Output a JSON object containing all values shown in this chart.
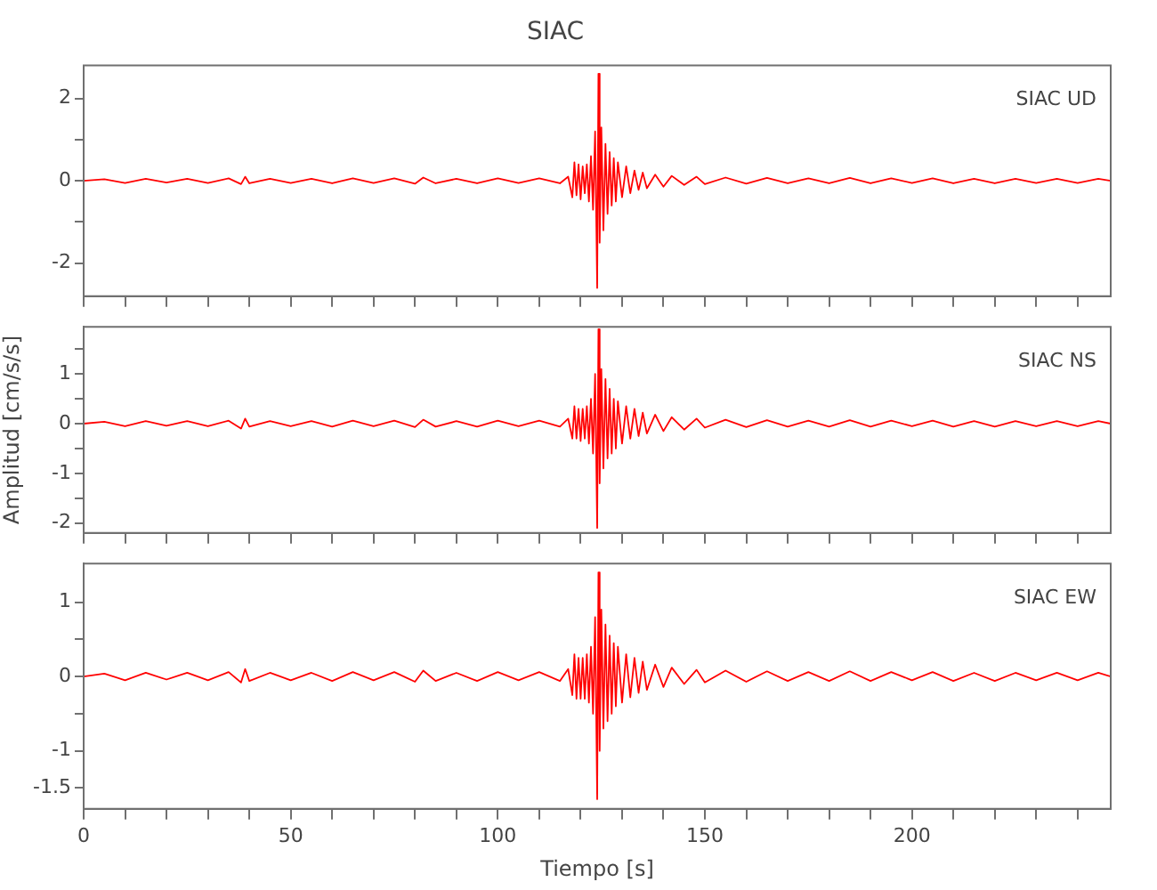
{
  "chart_data": [
    {
      "type": "line",
      "title": "SIAC",
      "annotations": [
        "SIAC UD"
      ],
      "tick_labels": "y",
      "marker": "none",
      "x": [
        0,
        5,
        10,
        15,
        20,
        25,
        30,
        35,
        38,
        39,
        40,
        45,
        50,
        55,
        60,
        65,
        70,
        75,
        80,
        82,
        85,
        90,
        95,
        100,
        105,
        110,
        115,
        117,
        118,
        118.5,
        119,
        119.5,
        120,
        120.5,
        121,
        121.5,
        122,
        122.5,
        123,
        123.5,
        124,
        124.3,
        124.6,
        125,
        125.5,
        126,
        126.5,
        127,
        127.5,
        128,
        128.5,
        129,
        130,
        131,
        132,
        133,
        134,
        135,
        136,
        138,
        140,
        142,
        145,
        148,
        150,
        155,
        160,
        165,
        170,
        175,
        180,
        185,
        190,
        195,
        200,
        205,
        210,
        215,
        220,
        225,
        230,
        235,
        240,
        245,
        248
      ],
      "values": [
        0,
        0.04,
        -0.05,
        0.05,
        -0.04,
        0.05,
        -0.05,
        0.06,
        -0.08,
        0.1,
        -0.06,
        0.05,
        -0.05,
        0.05,
        -0.06,
        0.06,
        -0.05,
        0.06,
        -0.07,
        0.08,
        -0.06,
        0.05,
        -0.06,
        0.06,
        -0.05,
        0.06,
        -0.06,
        0.1,
        -0.4,
        0.45,
        -0.35,
        0.4,
        -0.45,
        0.35,
        -0.3,
        0.4,
        -0.5,
        0.6,
        -0.7,
        1.2,
        -2.6,
        2.6,
        -1.5,
        1.3,
        -1.2,
        0.9,
        -0.8,
        0.7,
        -0.6,
        0.55,
        -0.5,
        0.45,
        -0.4,
        0.35,
        -0.3,
        0.25,
        -0.22,
        0.2,
        -0.18,
        0.15,
        -0.14,
        0.12,
        -0.1,
        0.1,
        -0.08,
        0.08,
        -0.07,
        0.07,
        -0.06,
        0.06,
        -0.06,
        0.07,
        -0.06,
        0.06,
        -0.05,
        0.06,
        -0.06,
        0.05,
        -0.06,
        0.05,
        -0.05,
        0.05,
        -0.05,
        0.05,
        0
      ],
      "color": "#ff0000",
      "xlim": [
        0,
        248
      ],
      "xticks": [
        {
          "value": 0,
          "label": null
        },
        {
          "value": 10,
          "label": null
        },
        {
          "value": 20,
          "label": null
        },
        {
          "value": 30,
          "label": null
        },
        {
          "value": 40,
          "label": null
        },
        {
          "value": 50,
          "label": null
        },
        {
          "value": 60,
          "label": null
        },
        {
          "value": 70,
          "label": null
        },
        {
          "value": 80,
          "label": null
        },
        {
          "value": 90,
          "label": null
        },
        {
          "value": 100,
          "label": null
        },
        {
          "value": 110,
          "label": null
        },
        {
          "value": 120,
          "label": null
        },
        {
          "value": 130,
          "label": null
        },
        {
          "value": 140,
          "label": null
        },
        {
          "value": 150,
          "label": null
        },
        {
          "value": 160,
          "label": null
        },
        {
          "value": 170,
          "label": null
        },
        {
          "value": 180,
          "label": null
        },
        {
          "value": 190,
          "label": null
        },
        {
          "value": 200,
          "label": null
        },
        {
          "value": 210,
          "label": null
        },
        {
          "value": 220,
          "label": null
        },
        {
          "value": 230,
          "label": null
        },
        {
          "value": 240,
          "label": null
        }
      ],
      "ylim": [
        -2.8,
        2.8
      ],
      "yticks": [
        -2,
        {
          "value": -1,
          "label": null
        },
        0,
        {
          "value": 1,
          "label": null
        },
        2
      ]
    },
    {
      "type": "line",
      "ylabel": "Amplitud [cm/s/s]",
      "annotations": [
        "SIAC NS"
      ],
      "tick_labels": "y",
      "marker": "none",
      "x": [
        0,
        5,
        10,
        15,
        20,
        25,
        30,
        35,
        38,
        39,
        40,
        45,
        50,
        55,
        60,
        65,
        70,
        75,
        80,
        82,
        85,
        90,
        95,
        100,
        105,
        110,
        115,
        117,
        118,
        118.5,
        119,
        119.5,
        120,
        120.5,
        121,
        121.5,
        122,
        122.5,
        123,
        123.5,
        124,
        124.3,
        124.6,
        125,
        125.5,
        126,
        126.5,
        127,
        127.5,
        128,
        128.5,
        129,
        130,
        131,
        132,
        133,
        134,
        135,
        136,
        138,
        140,
        142,
        145,
        148,
        150,
        155,
        160,
        165,
        170,
        175,
        180,
        185,
        190,
        195,
        200,
        205,
        210,
        215,
        220,
        225,
        230,
        235,
        240,
        245,
        248
      ],
      "values": [
        0,
        0.04,
        -0.05,
        0.05,
        -0.04,
        0.05,
        -0.05,
        0.06,
        -0.1,
        0.1,
        -0.06,
        0.05,
        -0.05,
        0.05,
        -0.06,
        0.06,
        -0.05,
        0.06,
        -0.07,
        0.08,
        -0.06,
        0.05,
        -0.06,
        0.06,
        -0.05,
        0.06,
        -0.06,
        0.1,
        -0.3,
        0.35,
        -0.3,
        0.3,
        -0.35,
        0.3,
        -0.3,
        0.35,
        -0.4,
        0.5,
        -0.6,
        1.0,
        -2.1,
        1.9,
        -1.2,
        1.1,
        -0.9,
        0.9,
        -0.7,
        0.7,
        -0.6,
        0.5,
        -0.5,
        0.45,
        -0.4,
        0.35,
        -0.3,
        0.3,
        -0.25,
        0.22,
        -0.2,
        0.18,
        -0.15,
        0.13,
        -0.12,
        0.1,
        -0.08,
        0.08,
        -0.07,
        0.07,
        -0.06,
        0.06,
        -0.06,
        0.07,
        -0.06,
        0.06,
        -0.05,
        0.06,
        -0.06,
        0.05,
        -0.06,
        0.05,
        -0.05,
        0.05,
        -0.05,
        0.05,
        0
      ],
      "color": "#ff0000",
      "xlim": [
        0,
        248
      ],
      "xticks": [
        {
          "value": 0,
          "label": null
        },
        {
          "value": 10,
          "label": null
        },
        {
          "value": 20,
          "label": null
        },
        {
          "value": 30,
          "label": null
        },
        {
          "value": 40,
          "label": null
        },
        {
          "value": 50,
          "label": null
        },
        {
          "value": 60,
          "label": null
        },
        {
          "value": 70,
          "label": null
        },
        {
          "value": 80,
          "label": null
        },
        {
          "value": 90,
          "label": null
        },
        {
          "value": 100,
          "label": null
        },
        {
          "value": 110,
          "label": null
        },
        {
          "value": 120,
          "label": null
        },
        {
          "value": 130,
          "label": null
        },
        {
          "value": 140,
          "label": null
        },
        {
          "value": 150,
          "label": null
        },
        {
          "value": 160,
          "label": null
        },
        {
          "value": 170,
          "label": null
        },
        {
          "value": 180,
          "label": null
        },
        {
          "value": 190,
          "label": null
        },
        {
          "value": 200,
          "label": null
        },
        {
          "value": 210,
          "label": null
        },
        {
          "value": 220,
          "label": null
        },
        {
          "value": 230,
          "label": null
        },
        {
          "value": 240,
          "label": null
        }
      ],
      "ylim": [
        -2.2,
        1.95
      ],
      "yticks": [
        -2,
        {
          "value": -1.5,
          "label": null
        },
        -1,
        {
          "value": -0.5,
          "label": null
        },
        0,
        {
          "value": 0.5,
          "label": null
        },
        1,
        {
          "value": 1.5,
          "label": null
        }
      ]
    },
    {
      "type": "line",
      "xlabel": "Tiempo [s]",
      "annotations": [
        "SIAC EW"
      ],
      "marker": "none",
      "x": [
        0,
        5,
        10,
        15,
        20,
        25,
        30,
        35,
        38,
        39,
        40,
        45,
        50,
        55,
        60,
        65,
        70,
        75,
        80,
        82,
        85,
        90,
        95,
        100,
        105,
        110,
        115,
        117,
        118,
        118.5,
        119,
        119.5,
        120,
        120.5,
        121,
        121.5,
        122,
        122.5,
        123,
        123.5,
        124,
        124.3,
        124.6,
        125,
        125.5,
        126,
        126.5,
        127,
        127.5,
        128,
        128.5,
        129,
        130,
        131,
        132,
        133,
        134,
        135,
        136,
        138,
        140,
        142,
        145,
        148,
        150,
        155,
        160,
        165,
        170,
        175,
        180,
        185,
        190,
        195,
        200,
        205,
        210,
        215,
        220,
        225,
        230,
        235,
        240,
        245,
        248
      ],
      "values": [
        0,
        0.04,
        -0.05,
        0.05,
        -0.04,
        0.05,
        -0.05,
        0.06,
        -0.08,
        0.1,
        -0.06,
        0.05,
        -0.05,
        0.05,
        -0.06,
        0.06,
        -0.05,
        0.06,
        -0.07,
        0.08,
        -0.06,
        0.05,
        -0.06,
        0.06,
        -0.05,
        0.06,
        -0.06,
        0.1,
        -0.25,
        0.3,
        -0.3,
        0.25,
        -0.3,
        0.25,
        -0.3,
        0.3,
        -0.35,
        0.4,
        -0.5,
        0.8,
        -1.65,
        1.4,
        -1.0,
        0.9,
        -0.7,
        0.7,
        -0.6,
        0.55,
        -0.5,
        0.45,
        -0.4,
        0.4,
        -0.35,
        0.3,
        -0.28,
        0.25,
        -0.22,
        0.2,
        -0.18,
        0.16,
        -0.14,
        0.12,
        -0.1,
        0.09,
        -0.08,
        0.08,
        -0.07,
        0.07,
        -0.06,
        0.06,
        -0.06,
        0.07,
        -0.06,
        0.06,
        -0.05,
        0.06,
        -0.06,
        0.05,
        -0.06,
        0.05,
        -0.05,
        0.05,
        -0.05,
        0.05,
        0
      ],
      "color": "#ff0000",
      "xlim": [
        0,
        248
      ],
      "xticks": [
        0,
        {
          "value": 10,
          "label": null
        },
        {
          "value": 20,
          "label": null
        },
        {
          "value": 30,
          "label": null
        },
        {
          "value": 40,
          "label": null
        },
        50,
        {
          "value": 60,
          "label": null
        },
        {
          "value": 70,
          "label": null
        },
        {
          "value": 80,
          "label": null
        },
        {
          "value": 90,
          "label": null
        },
        100,
        {
          "value": 110,
          "label": null
        },
        {
          "value": 120,
          "label": null
        },
        {
          "value": 130,
          "label": null
        },
        {
          "value": 140,
          "label": null
        },
        150,
        {
          "value": 160,
          "label": null
        },
        {
          "value": 170,
          "label": null
        },
        {
          "value": 180,
          "label": null
        },
        {
          "value": 190,
          "label": null
        },
        200,
        {
          "value": 210,
          "label": null
        },
        {
          "value": 220,
          "label": null
        },
        {
          "value": 230,
          "label": null
        },
        {
          "value": 240,
          "label": null
        }
      ],
      "ylim": [
        -1.78,
        1.52
      ],
      "yticks": [
        -1.5,
        -1,
        {
          "value": -0.5,
          "label": null
        },
        0,
        {
          "value": 0.5,
          "label": null
        },
        1
      ]
    }
  ]
}
